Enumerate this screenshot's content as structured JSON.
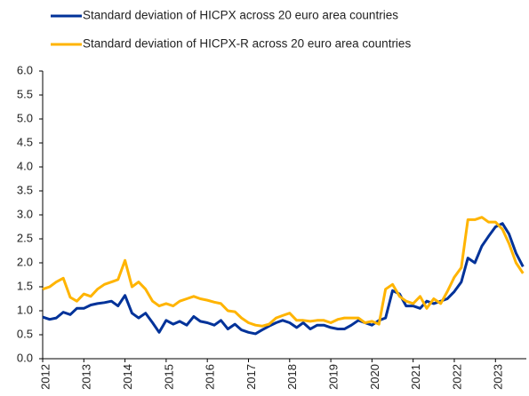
{
  "chart_data": {
    "type": "line",
    "x": [
      2012,
      2012.17,
      2012.33,
      2012.5,
      2012.67,
      2012.83,
      2013,
      2013.17,
      2013.33,
      2013.5,
      2013.67,
      2013.83,
      2014,
      2014.17,
      2014.33,
      2014.5,
      2014.67,
      2014.83,
      2015,
      2015.17,
      2015.33,
      2015.5,
      2015.67,
      2015.83,
      2016,
      2016.17,
      2016.33,
      2016.5,
      2016.67,
      2016.83,
      2017,
      2017.17,
      2017.33,
      2017.5,
      2017.67,
      2017.83,
      2018,
      2018.17,
      2018.33,
      2018.5,
      2018.67,
      2018.83,
      2019,
      2019.17,
      2019.33,
      2019.5,
      2019.67,
      2019.83,
      2020,
      2020.17,
      2020.33,
      2020.5,
      2020.67,
      2020.83,
      2021,
      2021.17,
      2021.33,
      2021.5,
      2021.67,
      2021.83,
      2022,
      2022.17,
      2022.33,
      2022.5,
      2022.67,
      2022.83,
      2023,
      2023.17,
      2023.33,
      2023.5,
      2023.67
    ],
    "series": [
      {
        "name": "Standard deviation of HICPX across 20 euro area countries",
        "color": "#003299",
        "values": [
          0.87,
          0.82,
          0.85,
          0.97,
          0.92,
          1.05,
          1.05,
          1.12,
          1.15,
          1.17,
          1.2,
          1.1,
          1.32,
          0.95,
          0.85,
          0.95,
          0.75,
          0.55,
          0.8,
          0.72,
          0.78,
          0.7,
          0.88,
          0.78,
          0.75,
          0.7,
          0.8,
          0.62,
          0.72,
          0.6,
          0.55,
          0.52,
          0.6,
          0.68,
          0.75,
          0.8,
          0.75,
          0.65,
          0.75,
          0.62,
          0.7,
          0.7,
          0.65,
          0.62,
          0.62,
          0.7,
          0.8,
          0.75,
          0.7,
          0.8,
          0.85,
          1.42,
          1.35,
          1.1,
          1.1,
          1.05,
          1.2,
          1.15,
          1.2,
          1.25,
          1.4,
          1.6,
          2.1,
          2.0,
          2.35,
          2.55,
          2.75,
          2.82,
          2.6,
          2.2,
          1.92
        ]
      },
      {
        "name": "Standard deviation of HICPX-R across 20 euro area countries",
        "color": "#ffb400",
        "values": [
          1.45,
          1.5,
          1.6,
          1.68,
          1.28,
          1.2,
          1.35,
          1.3,
          1.45,
          1.55,
          1.6,
          1.65,
          2.05,
          1.5,
          1.6,
          1.45,
          1.2,
          1.1,
          1.15,
          1.1,
          1.2,
          1.25,
          1.3,
          1.25,
          1.22,
          1.18,
          1.15,
          1.0,
          0.98,
          0.85,
          0.75,
          0.7,
          0.68,
          0.72,
          0.85,
          0.9,
          0.95,
          0.8,
          0.8,
          0.78,
          0.8,
          0.8,
          0.75,
          0.82,
          0.85,
          0.85,
          0.85,
          0.75,
          0.78,
          0.72,
          1.45,
          1.55,
          1.3,
          1.2,
          1.15,
          1.3,
          1.05,
          1.25,
          1.15,
          1.4,
          1.7,
          1.9,
          2.9,
          2.9,
          2.95,
          2.85,
          2.85,
          2.7,
          2.4,
          2.0,
          1.78
        ]
      }
    ],
    "xlim": [
      2012,
      2023.75
    ],
    "xticks": [
      2012,
      2013,
      2014,
      2015,
      2016,
      2017,
      2018,
      2019,
      2020,
      2021,
      2022,
      2023
    ],
    "ylim": [
      0,
      6
    ],
    "yticks": [
      {
        "value": 0,
        "label": "0.0"
      },
      {
        "value": 0.5,
        "label": "0.5"
      },
      {
        "value": 1,
        "label": "1.0"
      },
      {
        "value": 1.5,
        "label": "1.5"
      },
      {
        "value": 2,
        "label": "2.0"
      },
      {
        "value": 2.5,
        "label": "2.5"
      },
      {
        "value": 3,
        "label": "3.0"
      },
      {
        "value": 3.5,
        "label": "3.5"
      },
      {
        "value": 4,
        "label": "4.0"
      },
      {
        "value": 4.5,
        "label": "4.5"
      },
      {
        "value": 5,
        "label": "5.0"
      },
      {
        "value": 5.5,
        "label": "5.5"
      },
      {
        "value": 6,
        "label": "6.0"
      }
    ],
    "legend": "top-left"
  }
}
